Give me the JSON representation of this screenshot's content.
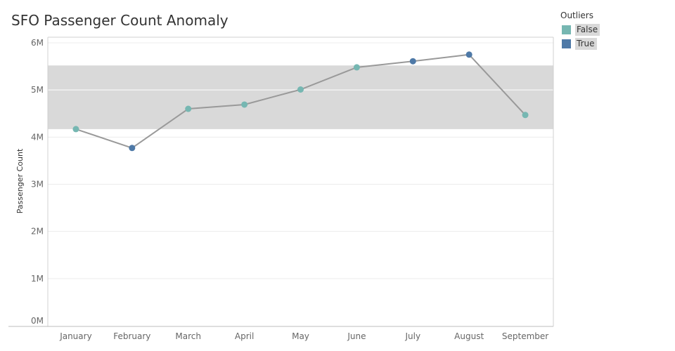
{
  "chart_data": {
    "type": "line",
    "title": "SFO Passenger Count Anomaly",
    "xlabel": "",
    "ylabel": "Passenger Count",
    "categories": [
      "January",
      "February",
      "March",
      "April",
      "May",
      "June",
      "July",
      "August",
      "September"
    ],
    "values": [
      4170000,
      3770000,
      4600000,
      4690000,
      5010000,
      5480000,
      5610000,
      5750000,
      4470000
    ],
    "outlier": [
      false,
      true,
      false,
      false,
      false,
      false,
      true,
      true,
      false
    ],
    "ylim": [
      0,
      6000000
    ],
    "yticks": [
      0,
      1000000,
      2000000,
      3000000,
      4000000,
      5000000,
      6000000
    ],
    "ytick_labels": [
      "0M",
      "1M",
      "2M",
      "3M",
      "4M",
      "5M",
      "6M"
    ],
    "band": [
      4170000,
      5520000
    ],
    "grid": true,
    "legend": {
      "title": "Outliers",
      "placement": "top-right",
      "entries": [
        {
          "label": "False",
          "color": "#76b7b2"
        },
        {
          "label": "True",
          "color": "#4e79a7"
        }
      ]
    },
    "colors": {
      "line": "#999999",
      "band": "#d9d9d9",
      "point_false": "#76b7b2",
      "point_true": "#4e79a7"
    }
  }
}
